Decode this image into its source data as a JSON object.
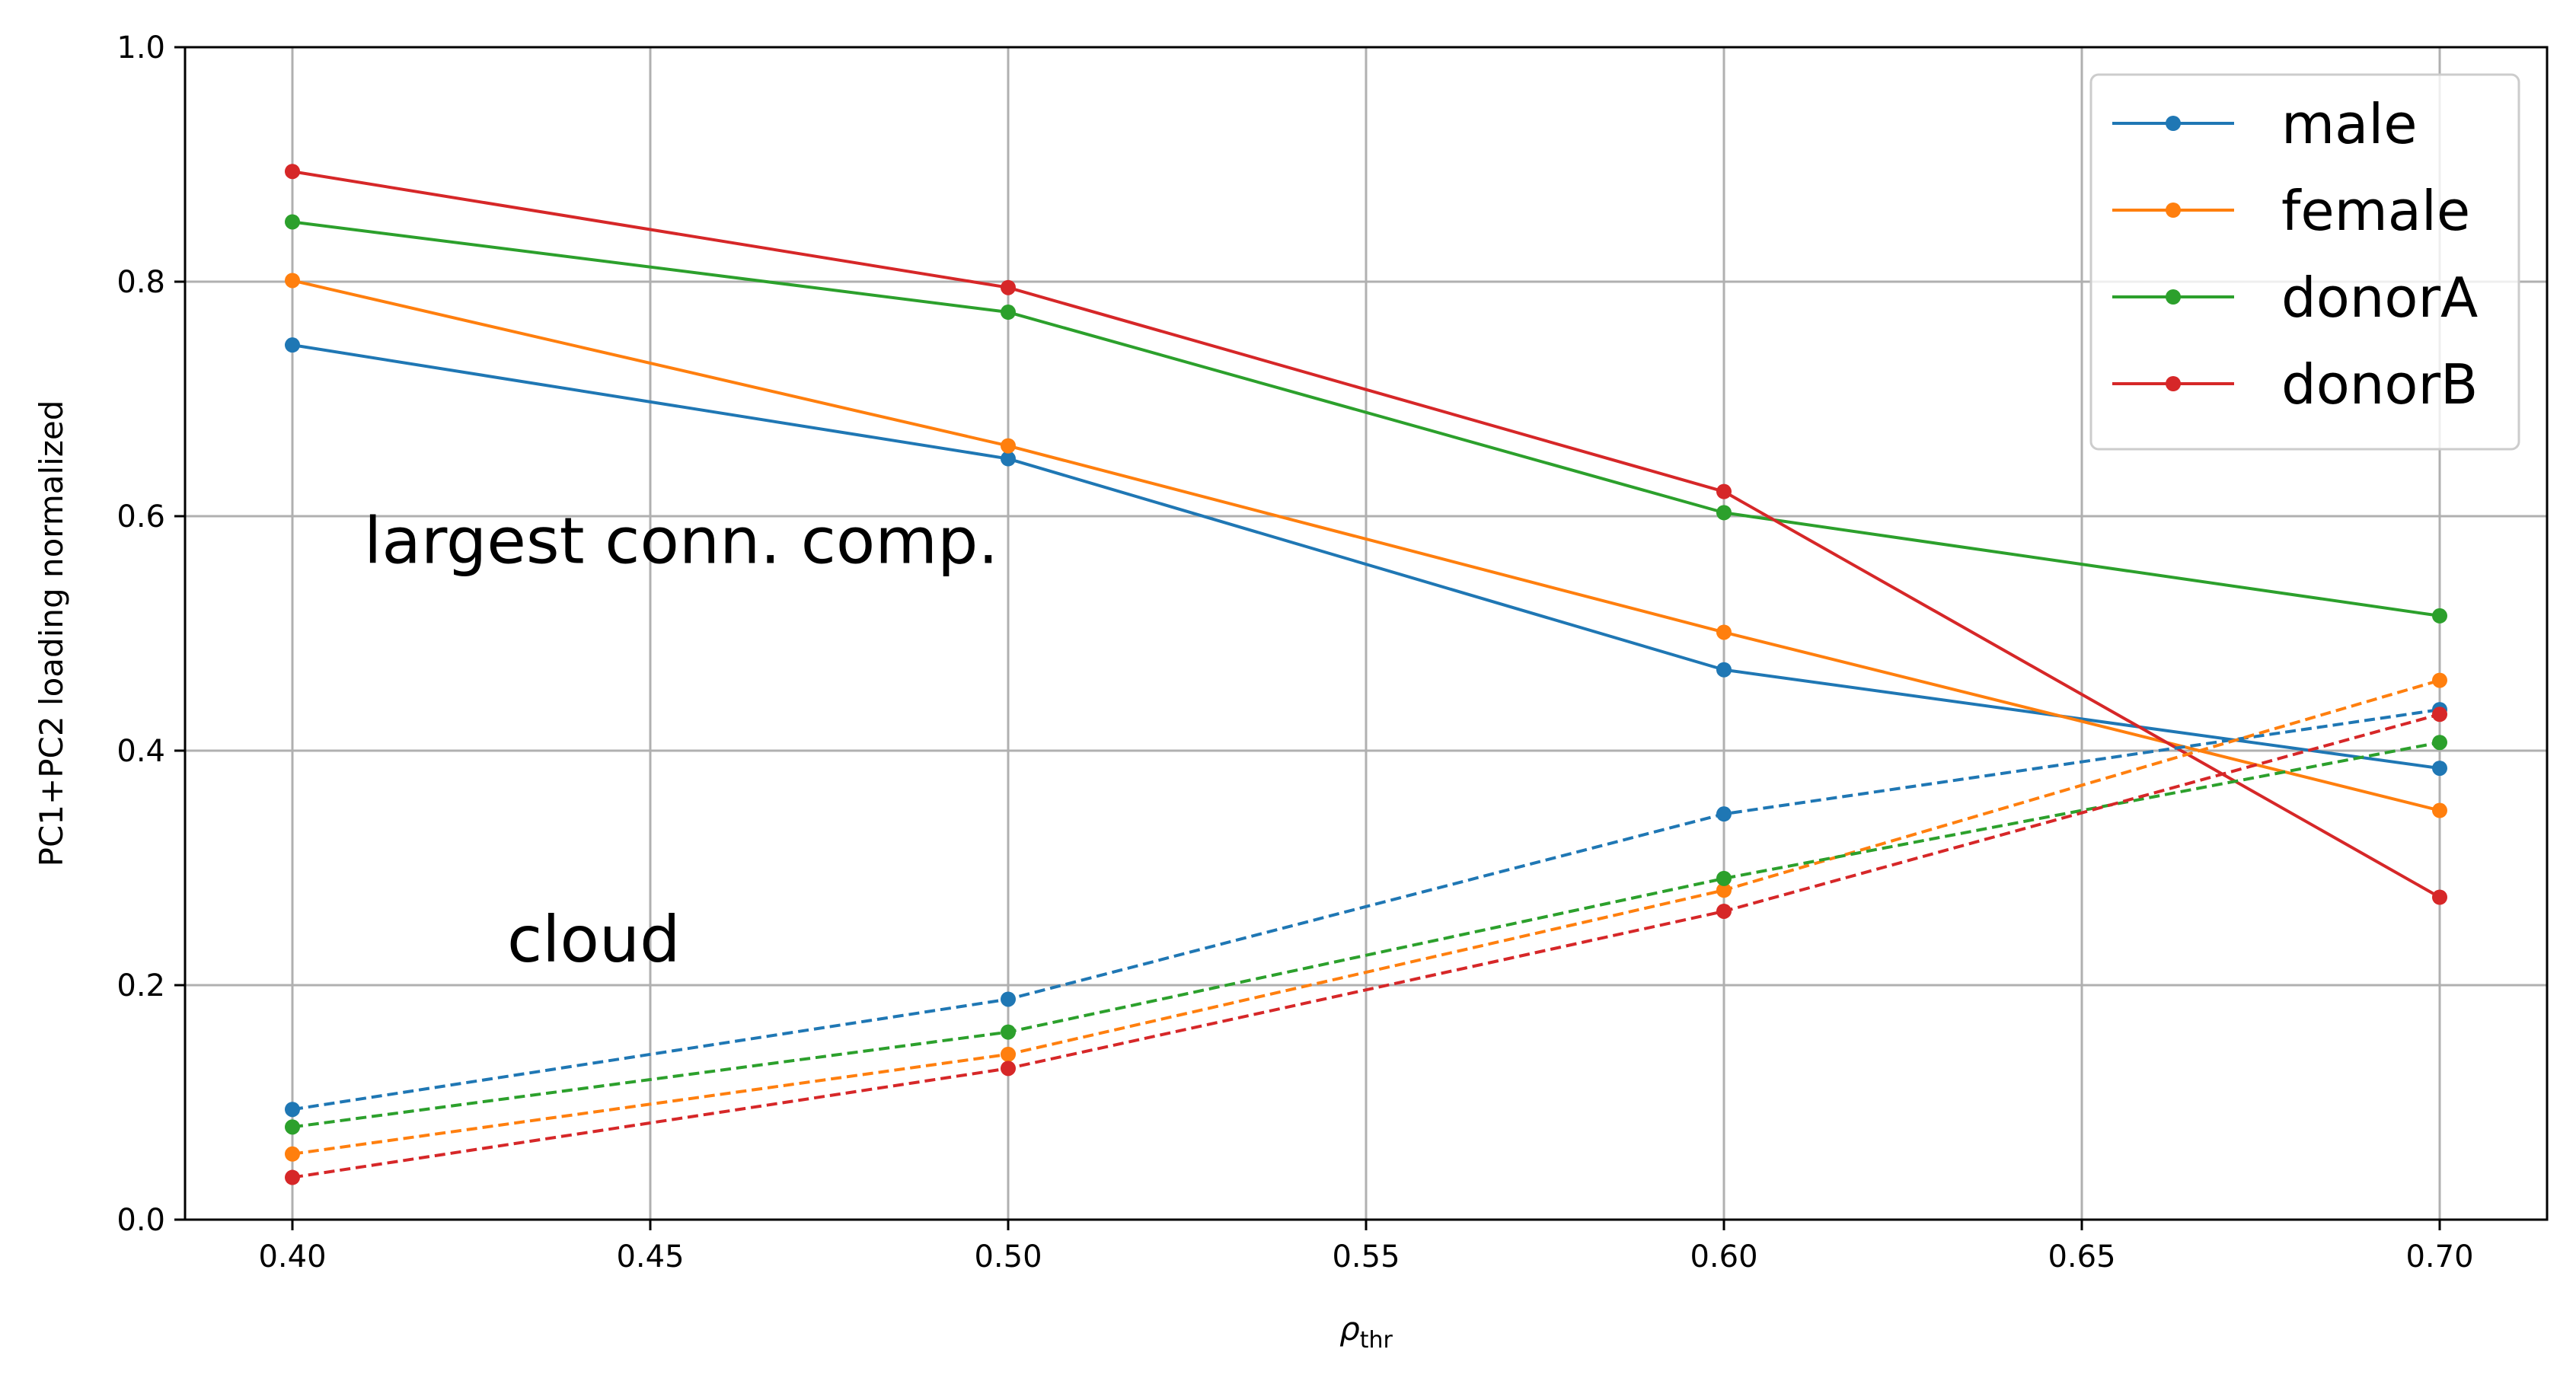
{
  "chart_data": {
    "type": "line",
    "x": [
      0.4,
      0.5,
      0.6,
      0.7
    ],
    "xlabel_main": "ρ",
    "xlabel_sub": "thr",
    "ylabel": "PC1+PC2 loading normalized",
    "xlim": [
      0.385,
      0.715
    ],
    "ylim": [
      0.0,
      1.0
    ],
    "xticks": [
      "0.40",
      "0.45",
      "0.50",
      "0.55",
      "0.60",
      "0.65",
      "0.70"
    ],
    "yticks": [
      "0.0",
      "0.2",
      "0.4",
      "0.6",
      "0.8",
      "1.0"
    ],
    "grid": true,
    "legend_position": "top-right",
    "annotations": [
      {
        "text": "largest conn. comp.",
        "x": 0.41,
        "y": 0.56
      },
      {
        "text": "cloud",
        "x": 0.43,
        "y": 0.22
      }
    ],
    "series": [
      {
        "name": "male",
        "color": "#1f77b4",
        "style": "solid",
        "values": [
          0.746,
          0.649,
          0.469,
          0.385
        ]
      },
      {
        "name": "female",
        "color": "#ff7f0e",
        "style": "solid",
        "values": [
          0.801,
          0.66,
          0.501,
          0.349
        ]
      },
      {
        "name": "donorA",
        "color": "#2ca02c",
        "style": "solid",
        "values": [
          0.851,
          0.774,
          0.603,
          0.515
        ]
      },
      {
        "name": "donorB",
        "color": "#d62728",
        "style": "solid",
        "values": [
          0.894,
          0.795,
          0.621,
          0.275
        ]
      },
      {
        "color": "#1f77b4",
        "style": "dashed",
        "values": [
          0.094,
          0.188,
          0.346,
          0.435
        ]
      },
      {
        "color": "#ff7f0e",
        "style": "dashed",
        "values": [
          0.056,
          0.141,
          0.281,
          0.46
        ]
      },
      {
        "color": "#2ca02c",
        "style": "dashed",
        "values": [
          0.079,
          0.16,
          0.291,
          0.407
        ]
      },
      {
        "color": "#d62728",
        "style": "dashed",
        "values": [
          0.036,
          0.129,
          0.263,
          0.431
        ]
      }
    ]
  }
}
